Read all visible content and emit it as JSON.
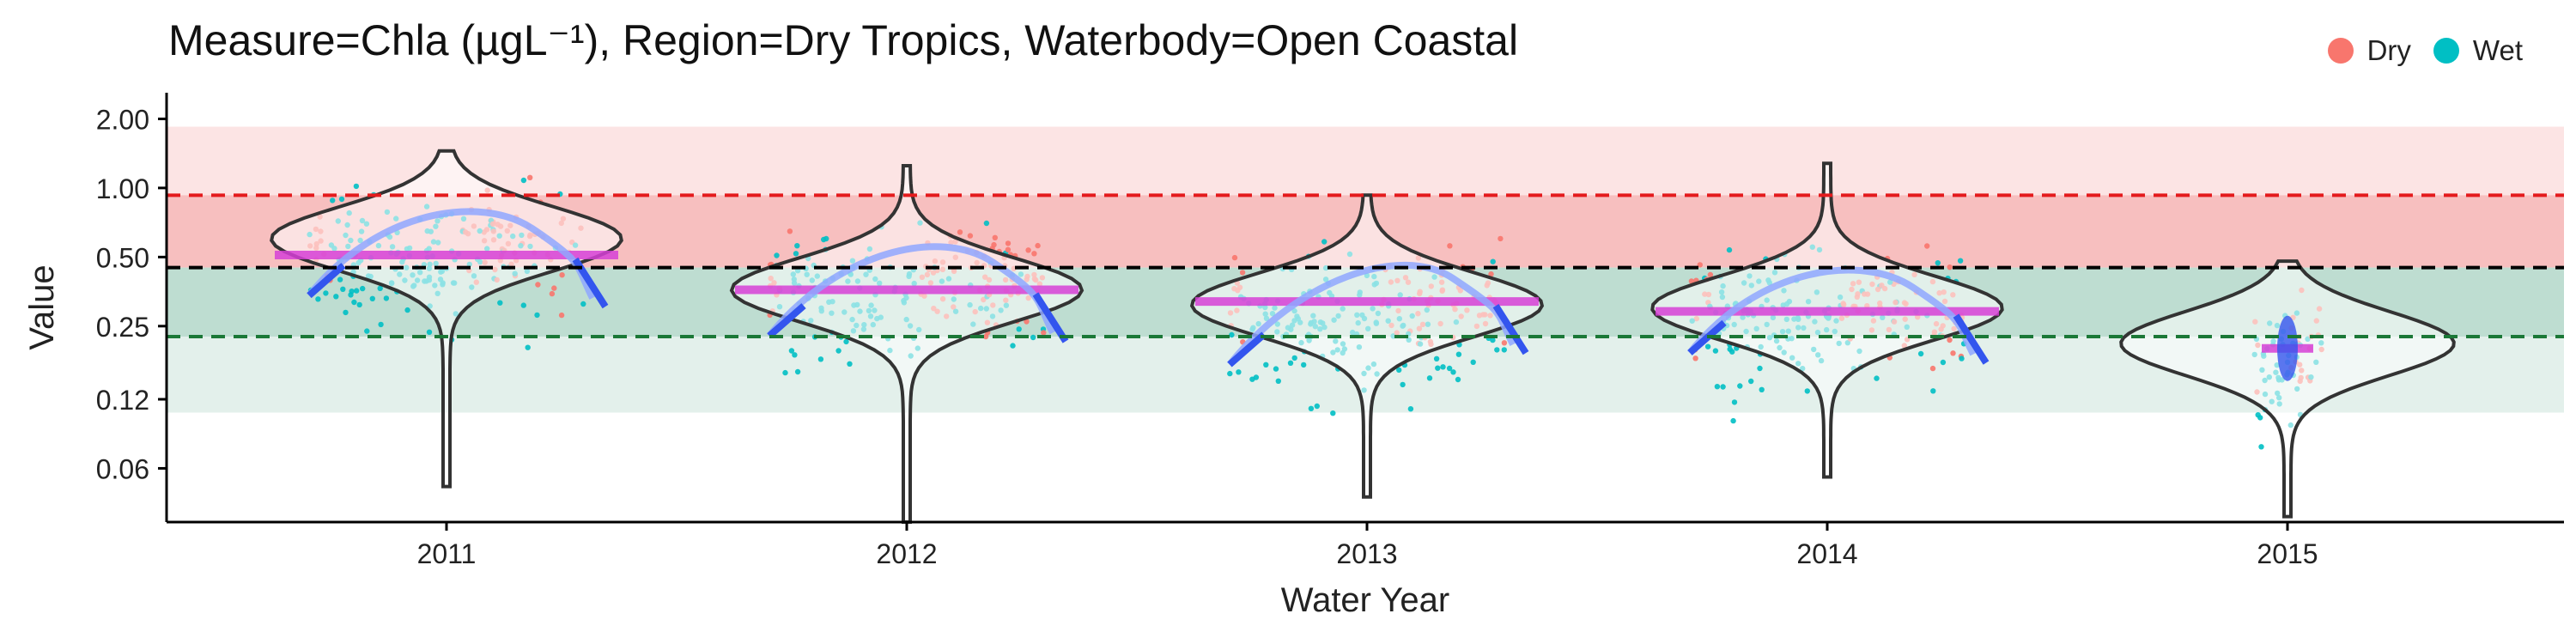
{
  "chart_data": {
    "type": "scatter",
    "title": "Measure=Chla (µgL⁻¹), Region=Dry Tropics, Waterbody=Open Coastal",
    "xlabel": "Water Year",
    "ylabel": "Value",
    "y_scale": "log",
    "ylim": [
      0.035,
      2.6
    ],
    "y_ticks": [
      0.06,
      0.12,
      0.25,
      0.5,
      1.0,
      2.0
    ],
    "y_tick_labels": [
      "0.06",
      "0.12",
      "0.25",
      "0.50",
      "1.00",
      "2.00"
    ],
    "categories": [
      "2011",
      "2012",
      "2013",
      "2014",
      "2015"
    ],
    "legend": {
      "placement": "top-right",
      "entries": [
        {
          "name": "Dry",
          "color": "#F8766D"
        },
        {
          "name": "Wet",
          "color": "#00BFC4"
        }
      ]
    },
    "threshold_lines": [
      {
        "value": 0.93,
        "color": "#E41A1C",
        "style": "dashed"
      },
      {
        "value": 0.45,
        "color": "#000000",
        "style": "dashed"
      },
      {
        "value": 0.225,
        "color": "#1B7837",
        "style": "dashed"
      }
    ],
    "bands": [
      {
        "from": 0.93,
        "to": 1.85,
        "color": "#FCE4E4"
      },
      {
        "from": 0.45,
        "to": 0.93,
        "color": "#F7BFBF"
      },
      {
        "from": 0.225,
        "to": 0.45,
        "color": "#BEDDD1"
      },
      {
        "from": 0.105,
        "to": 0.225,
        "color": "#E3F0EB"
      }
    ],
    "series": [
      {
        "name": "Dry",
        "color": "#F8766D",
        "values": [
          0.56,
          0.4,
          0.34,
          0.31,
          0.21
        ]
      },
      {
        "name": "Wet",
        "color": "#00BFC4",
        "values": [
          0.48,
          0.32,
          0.24,
          0.27,
          0.18
        ]
      }
    ],
    "annual_median": [
      0.51,
      0.36,
      0.32,
      0.29,
      0.2
    ],
    "violin_median": [
      0.6,
      0.36,
      0.31,
      0.3,
      0.21
    ],
    "violin_range": [
      [
        0.05,
        1.45
      ],
      [
        0.035,
        1.25
      ],
      [
        0.045,
        0.93
      ],
      [
        0.055,
        1.28
      ],
      [
        0.037,
        0.48
      ]
    ]
  }
}
